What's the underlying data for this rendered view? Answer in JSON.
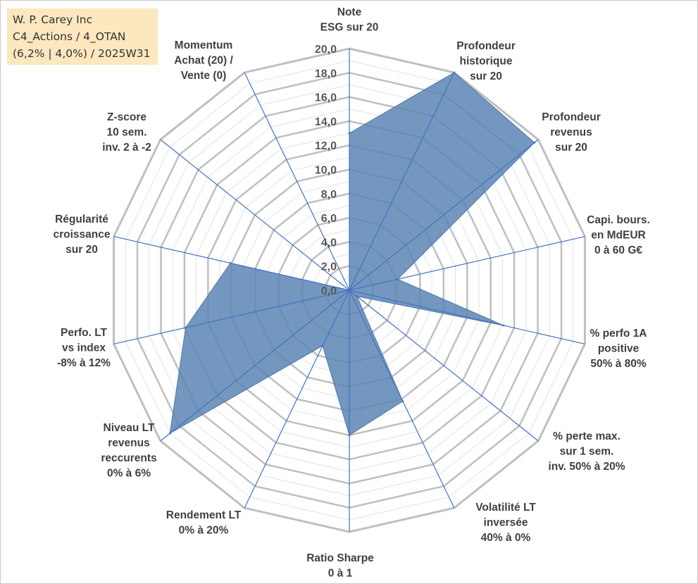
{
  "header": {
    "line1": "W. P. Carey Inc",
    "line2": "C4_Actions / 4_OTAN",
    "line3": "(6,2% | 4,0%) / 2025W31"
  },
  "chart_data": {
    "type": "radar",
    "rmax": 20,
    "tick_step": 2,
    "tick_labels": [
      "0,0",
      "2,0",
      "4,0",
      "6,0",
      "8,0",
      "10,0",
      "12,0",
      "14,0",
      "16,0",
      "18,0",
      "20,0"
    ],
    "axes": [
      [
        "Note",
        "ESG sur 20"
      ],
      [
        "Profondeur",
        "historique",
        "sur 20"
      ],
      [
        "Profondeur",
        "revenus",
        "sur 20"
      ],
      [
        "Capi. bours.",
        "en MdEUR",
        "0 à 60 G€"
      ],
      [
        "% perfo 1A",
        "positive",
        "50% à 80%"
      ],
      [
        "% perte max.",
        "sur 1 sem.",
        "inv. 50% à 20%"
      ],
      [
        "Volatilité LT",
        "inversée",
        "40% à 0%"
      ],
      [
        "Ratio Sharpe",
        "0 à 1"
      ],
      [
        "Rendement LT",
        "0% à 20%"
      ],
      [
        "Niveau LT",
        "revenus",
        "reccurents",
        "0% à 6%"
      ],
      [
        "Perfo. LT",
        "vs index",
        "-8% à 12%"
      ],
      [
        "Régularité",
        "croissance",
        "sur 20"
      ],
      [
        "Z-score",
        "10 sem.",
        "inv. 2 à -2"
      ],
      [
        "Momentum",
        "Achat (20) /",
        "Vente (0)"
      ]
    ],
    "values": [
      13.0,
      20.0,
      19.6,
      4.1,
      13.1,
      0.8,
      10.2,
      12.0,
      5.1,
      19.0,
      13.9,
      10.1,
      0.0,
      0.0
    ],
    "colors": {
      "fill": "#5b85b4",
      "stroke": "#4e78a8",
      "grid": "#bfbfbf",
      "spoke": "#4472c4"
    }
  }
}
